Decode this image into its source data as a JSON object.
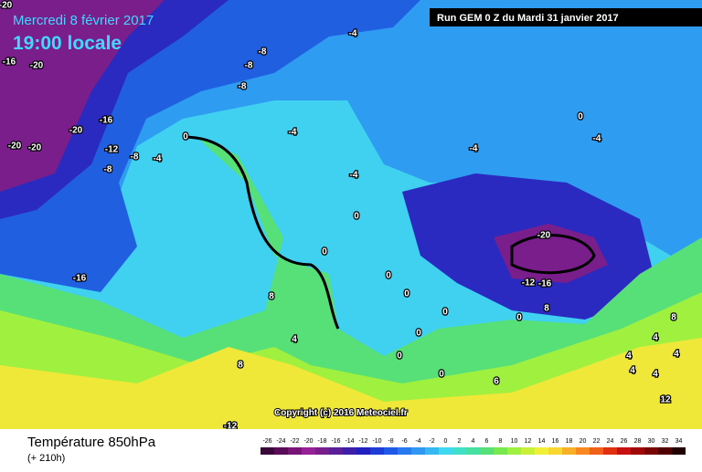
{
  "header": {
    "date": "Mercredi 8 février 2017",
    "time": "19:00 locale",
    "run": "Run GEM 0 Z du Mardi 31 janvier 2017"
  },
  "copyright": "Copyright (c) 2016 Meteociel.fr",
  "footer": {
    "title": "Température 850hPa",
    "subtitle": "(+ 210h)"
  },
  "legend": {
    "values": [
      -26,
      -24,
      -22,
      -20,
      -18,
      -16,
      -14,
      -12,
      -10,
      -8,
      -6,
      -4,
      -2,
      0,
      2,
      4,
      6,
      8,
      10,
      12,
      14,
      16,
      18,
      20,
      22,
      24,
      26,
      28,
      30,
      32,
      34
    ],
    "colors": [
      "#3a0838",
      "#5a0c58",
      "#781478",
      "#962096",
      "#7a1e8c",
      "#5a1e96",
      "#3c1ea8",
      "#2020c0",
      "#1e3cd8",
      "#2058e8",
      "#2878f0",
      "#3098f0",
      "#38b8f0",
      "#40d8f0",
      "#40e0c8",
      "#48e0a0",
      "#58e078",
      "#78e850",
      "#a0f040",
      "#c8f038",
      "#f0f038",
      "#f8d830",
      "#f8b028",
      "#f88820",
      "#f06018",
      "#e03010",
      "#c81010",
      "#a00808",
      "#780404",
      "#500000",
      "#200000"
    ]
  },
  "contour_labels": [
    "-20",
    "-16",
    "-20",
    "-20",
    "-20",
    "-16",
    "-20",
    "-12",
    "-8",
    "-8",
    "-4",
    "0",
    "-8",
    "-8",
    "-8",
    "-4",
    "-4",
    "-16",
    "-4",
    "0",
    "0",
    "8",
    "4",
    "8",
    "-4",
    "0",
    "-4",
    "-20",
    "-12",
    "-16",
    "0",
    "0",
    "0",
    "0",
    "0",
    "0",
    "0",
    "8",
    "6",
    "4",
    "4",
    "4",
    "4",
    "4",
    "8",
    "12",
    "-12"
  ]
}
